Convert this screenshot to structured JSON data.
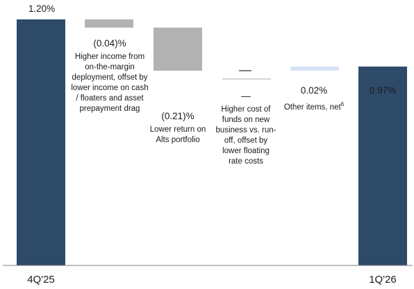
{
  "chart_data": {
    "type": "waterfall",
    "title": "",
    "xlabel": "",
    "ylabel": "",
    "ylim": [
      0,
      1.2
    ],
    "colors": {
      "total": "#2e4a69",
      "decrease": "#b2b2b2",
      "increase": "#d6e2f5",
      "neutral": "#6b6b6b",
      "axis": "#808080"
    },
    "steps": [
      {
        "kind": "total",
        "value": 1.2,
        "value_label": "1.20%",
        "category": "4Q'25",
        "description": ""
      },
      {
        "kind": "decrease",
        "value": -0.04,
        "value_label": "(0.04)%",
        "category": "",
        "description": "Higher income from on-the-margin deployment, offset by lower income on cash / floaters and asset prepayment drag"
      },
      {
        "kind": "decrease",
        "value": -0.21,
        "value_label": "(0.21)%",
        "category": "",
        "description": "Lower return on Alts portfolio"
      },
      {
        "kind": "neutral",
        "value": 0.0,
        "value_label": "—",
        "category": "",
        "description": "Higher cost of funds on new business vs. run-off, offset by lower floating rate costs"
      },
      {
        "kind": "increase",
        "value": 0.02,
        "value_label": "0.02%",
        "category": "",
        "description": "Other items, net",
        "footnote": "6"
      },
      {
        "kind": "total",
        "value": 0.97,
        "value_label": "0.97%",
        "category": "1Q'26",
        "description": ""
      }
    ]
  }
}
